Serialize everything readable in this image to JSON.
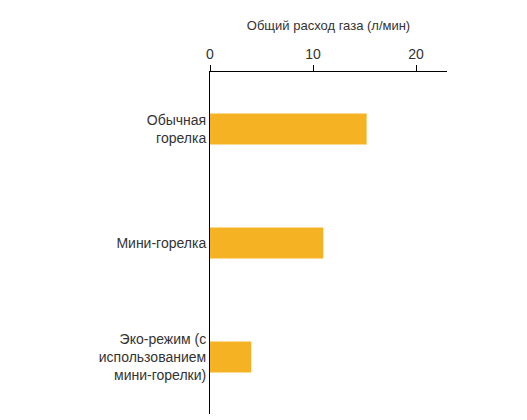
{
  "chart_data": {
    "type": "bar",
    "orientation": "horizontal",
    "x_label": "Общий расход газа (л/мин)",
    "categories": [
      "Обычная горелка",
      "Мини-горелка",
      "Эко-режим (с использованием мини-горелки)"
    ],
    "values": [
      15.2,
      11,
      4
    ],
    "color": "#f5b324",
    "xlim": [
      0,
      23
    ],
    "xticks": [
      0,
      10,
      20
    ],
    "grid": false
  }
}
